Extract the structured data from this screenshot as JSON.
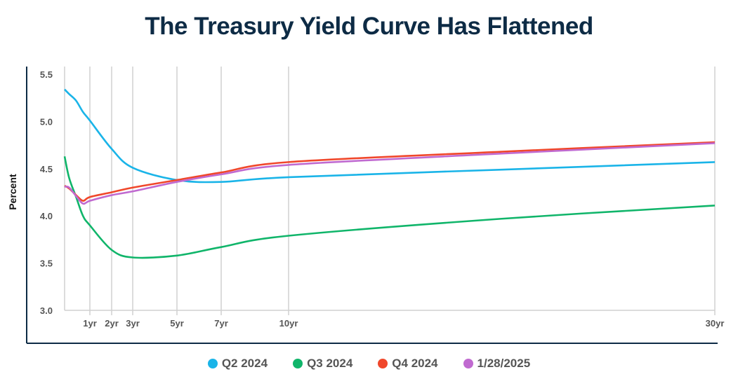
{
  "chart_data": {
    "type": "line",
    "title": "The Treasury Yield Curve Has Flattened",
    "ylabel": "Percent",
    "xlabel": "",
    "ylim": [
      3.0,
      5.5
    ],
    "yticks": [
      "3.0",
      "3.5",
      "4.0",
      "4.5",
      "5.0",
      "5.5"
    ],
    "xticks": [
      {
        "label": "1yr",
        "x": 1
      },
      {
        "label": "2yr",
        "x": 2
      },
      {
        "label": "3yr",
        "x": 3
      },
      {
        "label": "5yr",
        "x": 5
      },
      {
        "label": "7yr",
        "x": 7
      },
      {
        "label": "10yr",
        "x": 10
      },
      {
        "label": "30yr",
        "x": 30
      }
    ],
    "grid": "vertical",
    "legend": "bottom",
    "x": [
      0.083,
      0.25,
      0.5,
      0.75,
      1,
      2,
      3,
      5,
      7,
      10,
      20,
      30
    ],
    "series": [
      {
        "name": "Q2 2024",
        "color": "#1ab4e8",
        "values": [
          5.34,
          5.29,
          5.22,
          5.1,
          5.01,
          4.71,
          4.51,
          4.38,
          4.36,
          4.41,
          4.49,
          4.57
        ]
      },
      {
        "name": "Q3 2024",
        "color": "#10b56a",
        "values": [
          4.63,
          4.4,
          4.2,
          4.0,
          3.9,
          3.64,
          3.56,
          3.58,
          3.67,
          3.79,
          3.97,
          4.11
        ]
      },
      {
        "name": "Q4 2024",
        "color": "#f0472b",
        "values": [
          4.32,
          4.29,
          4.22,
          4.16,
          4.2,
          4.25,
          4.3,
          4.38,
          4.46,
          4.57,
          4.68,
          4.78
        ]
      },
      {
        "name": "1/28/2025",
        "color": "#c06ad0",
        "values": [
          4.31,
          4.3,
          4.21,
          4.13,
          4.16,
          4.22,
          4.26,
          4.36,
          4.44,
          4.54,
          4.66,
          4.77
        ]
      }
    ]
  }
}
